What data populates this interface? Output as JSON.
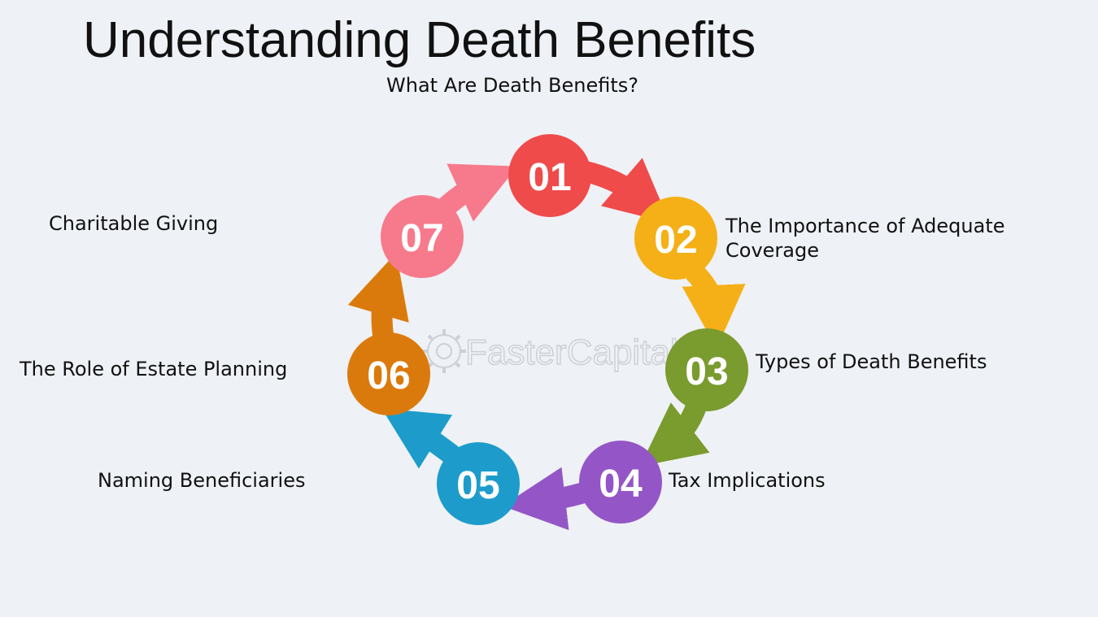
{
  "title": "Understanding Death Benefits",
  "watermark": "FasterCapital",
  "steps": [
    {
      "num": "01",
      "label": "What Are Death Benefits?",
      "color": "#ef4b4b"
    },
    {
      "num": "02",
      "label_line1": "The Importance of Adequate",
      "label_line2": "Coverage",
      "color": "#f4b016"
    },
    {
      "num": "03",
      "label": "Types of Death Benefits",
      "color": "#7a9b2e"
    },
    {
      "num": "04",
      "label": "Tax Implications",
      "color": "#9456c7"
    },
    {
      "num": "05",
      "label": "Naming Beneficiaries",
      "color": "#1d9ccb"
    },
    {
      "num": "06",
      "label": "The Role of Estate Planning",
      "color": "#db7a0c"
    },
    {
      "num": "07",
      "label": "Charitable Giving",
      "color": "#f77a8c"
    }
  ]
}
